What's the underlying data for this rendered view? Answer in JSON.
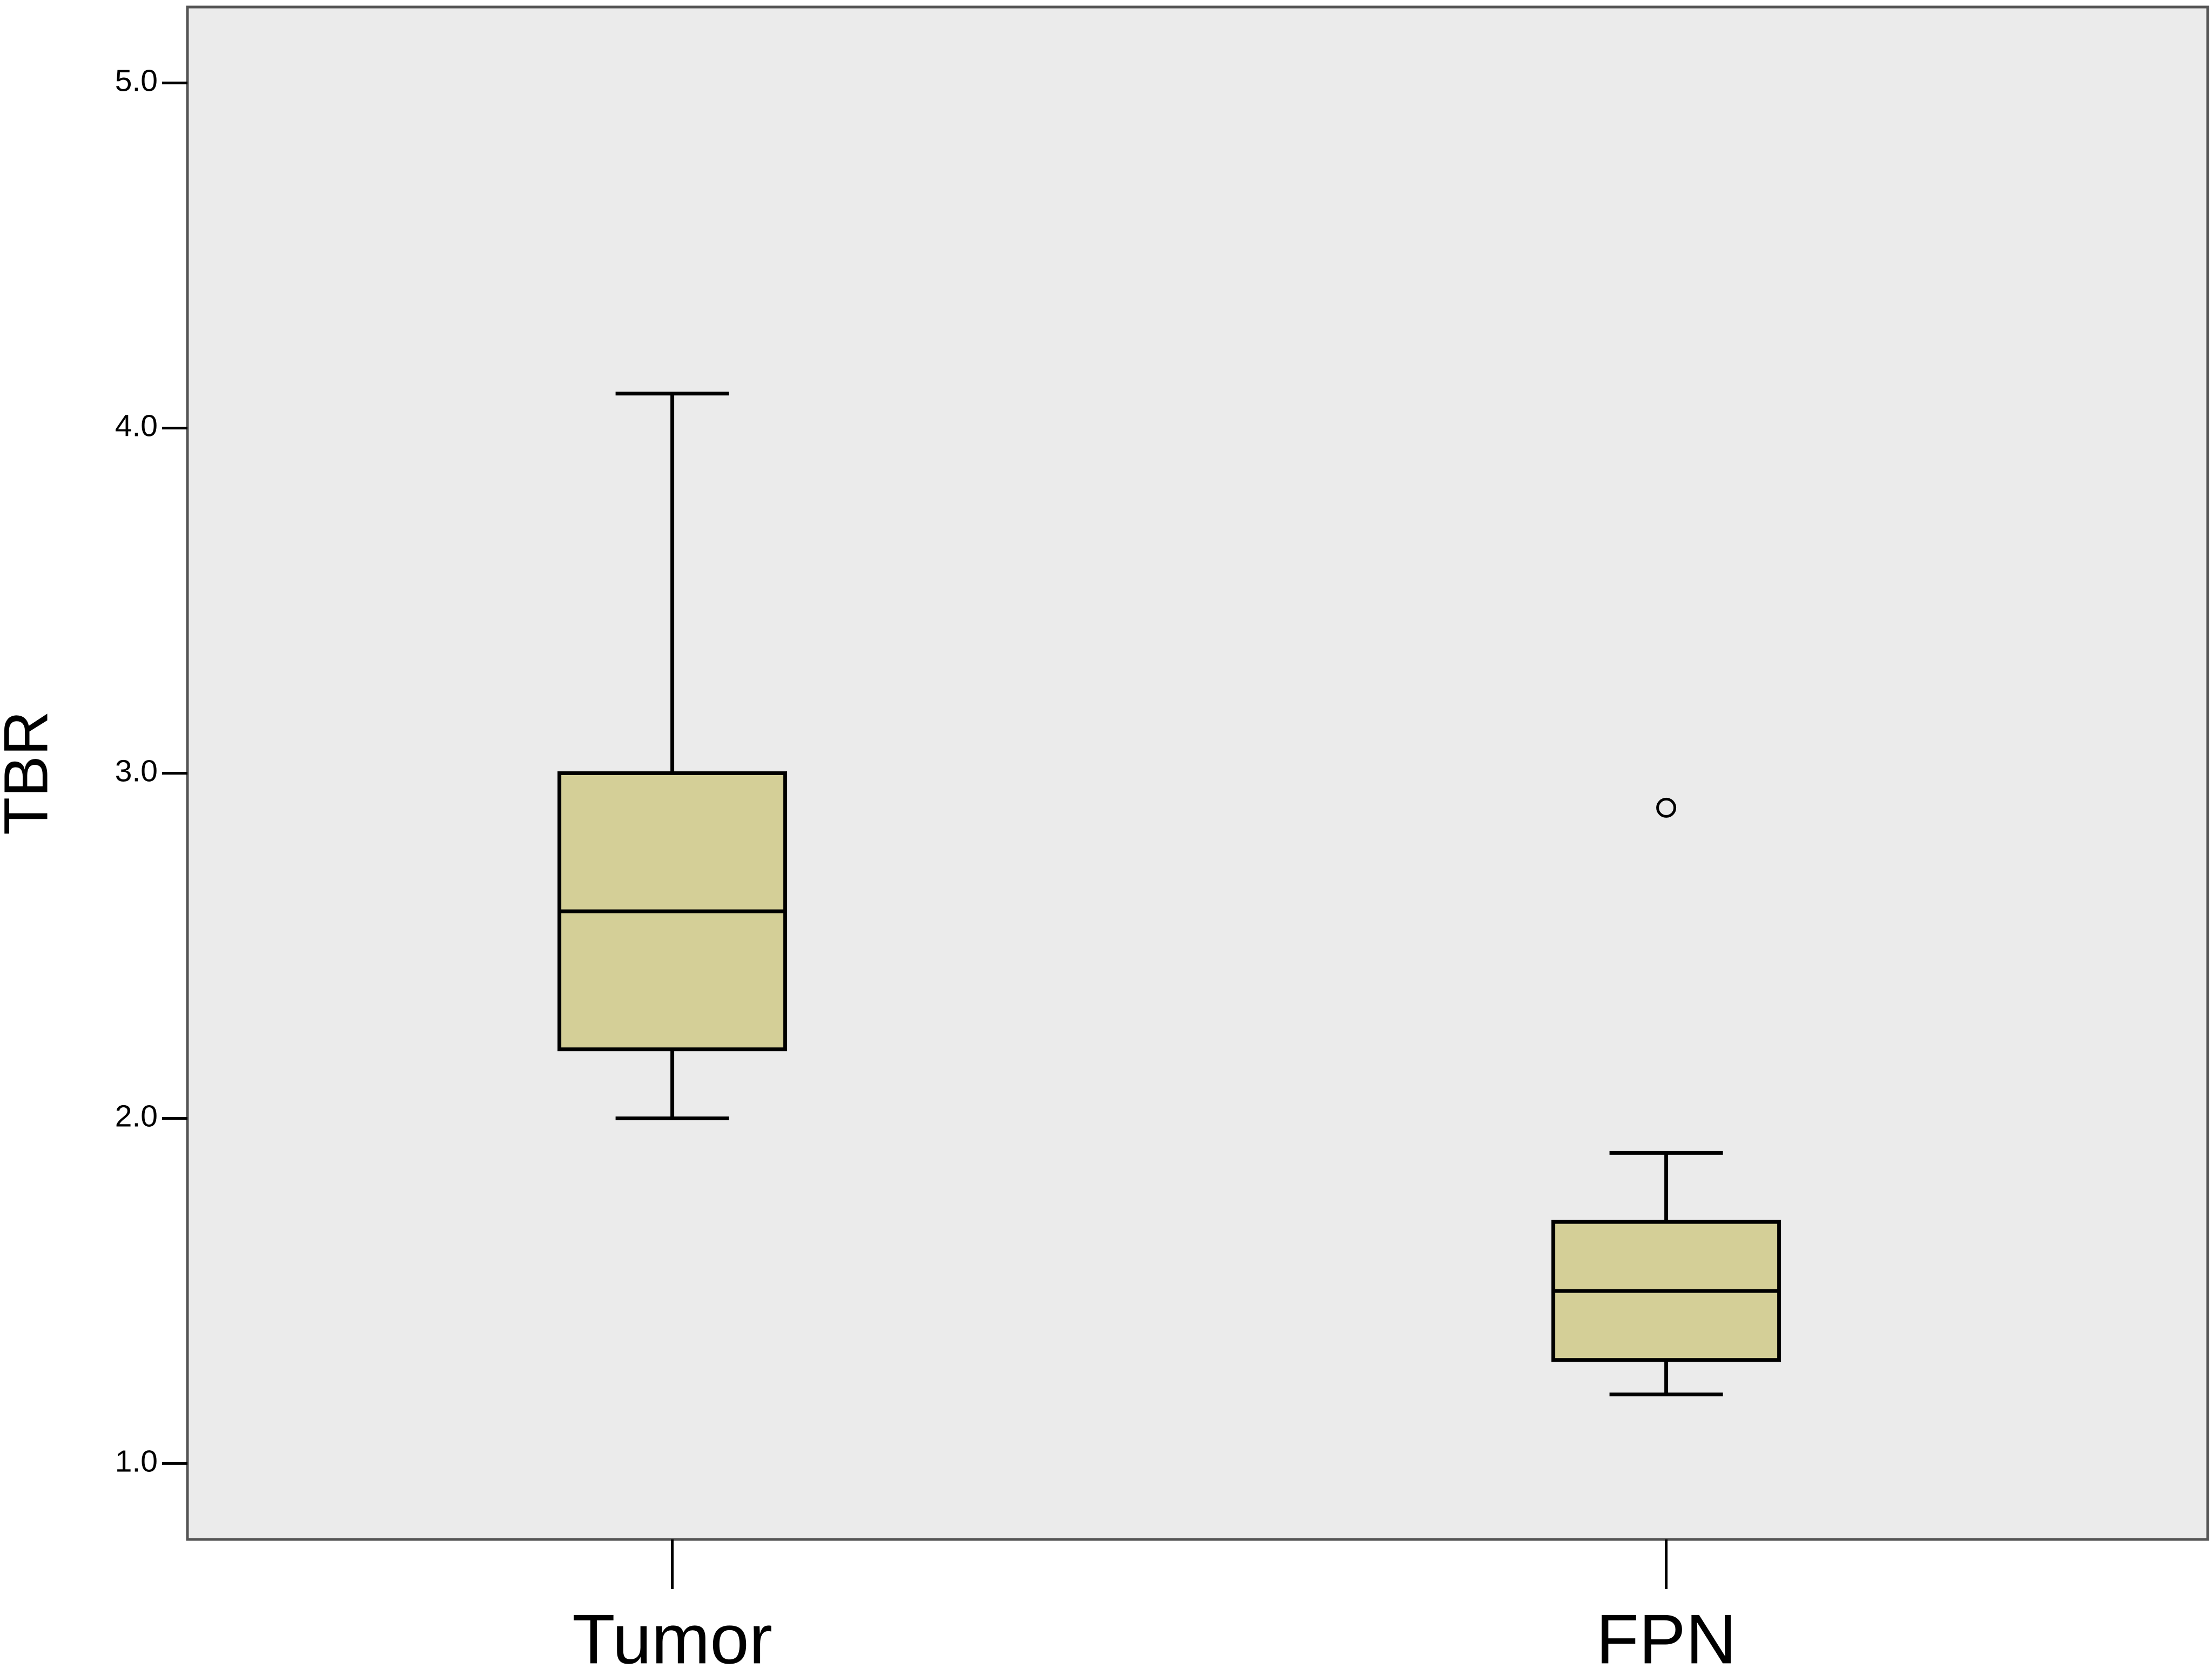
{
  "chart_data": {
    "type": "box",
    "y_label": "TBR",
    "categories": [
      "Tumor",
      "FPN"
    ],
    "boxes": [
      {
        "min": 2.0,
        "q1": 2.2,
        "median": 2.6,
        "q3": 3.0,
        "max": 4.1,
        "outliers": []
      },
      {
        "min": 1.2,
        "q1": 1.3,
        "median": 1.5,
        "q3": 1.7,
        "max": 1.9,
        "outliers": [
          2.9
        ]
      }
    ],
    "color": "#d4cf97",
    "background": "#ebebeb",
    "ylim": [
      0.78,
      5.22
    ],
    "yticks": [
      {
        "value": 1,
        "label": "1.0"
      },
      {
        "value": 2,
        "label": "2.0"
      },
      {
        "value": 3,
        "label": "3.0"
      },
      {
        "value": 4,
        "label": "4.0"
      },
      {
        "value": 5,
        "label": "5.0"
      }
    ]
  }
}
